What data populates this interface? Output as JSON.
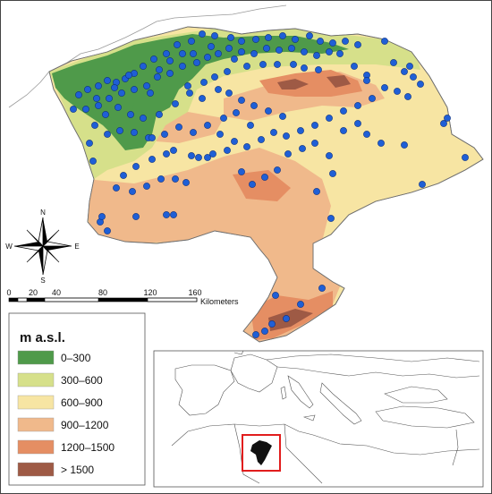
{
  "legend": {
    "title": "m a.s.l.",
    "classes": [
      {
        "label": "0–300",
        "color": "#4f9a4a"
      },
      {
        "label": "300–600",
        "color": "#d6e08a"
      },
      {
        "label": "600–900",
        "color": "#f7e5a3"
      },
      {
        "label": "900–1200",
        "color": "#f0b98b"
      },
      {
        "label": "1200–1500",
        "color": "#e58e63"
      },
      {
        "label": "> 1500",
        "color": "#9e5a45"
      }
    ]
  },
  "scale_bar": {
    "ticks": [
      "0",
      "20",
      "40",
      "80",
      "120",
      "160"
    ],
    "unit": "Kilometers"
  },
  "north_arrow": {
    "n": "N",
    "s": "S",
    "e": "E",
    "w": "W"
  },
  "colors": {
    "station_dot": "#1f5fd6",
    "station_outline": "#0b2f80",
    "inset_box": "#e11d1d",
    "inset_region": "#111111"
  },
  "inset": {
    "caption": ""
  }
}
